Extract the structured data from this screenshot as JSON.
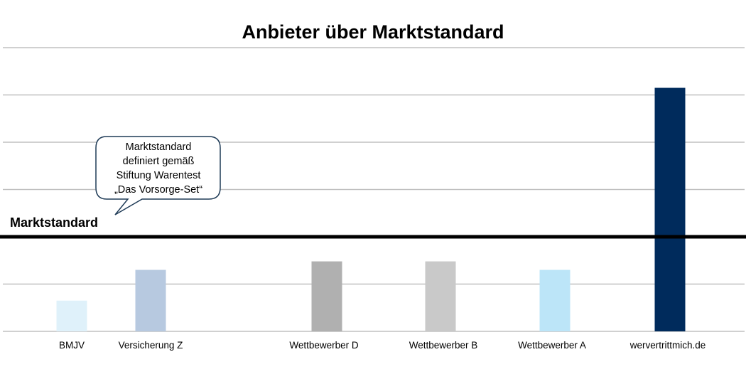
{
  "chart_data": {
    "type": "bar",
    "title": "Anbieter über Marktstandard",
    "categories": [
      "BMJV",
      "Versicherung  Z",
      "Wettbewerber D",
      "Wettbewerber B",
      "Wettbewerber A",
      "wervertrittmich.de"
    ],
    "values": [
      0.65,
      1.3,
      1.48,
      1.48,
      1.3,
      5.15
    ],
    "colors": [
      "#dff1fa",
      "#b7c9e0",
      "#b0b0b0",
      "#c9c9c9",
      "#bce5f8",
      "#002b5c"
    ],
    "ylim": [
      0,
      6
    ],
    "grid": true,
    "reference_line": {
      "label": "Marktstandard",
      "value": 2.0,
      "color": "#000000"
    },
    "annotation": {
      "lines": [
        "Marktstandard",
        "definiert gemäß",
        "Stiftung Warentest",
        "„Das Vorsorge-Set“"
      ],
      "border_color": "#1f3b57"
    }
  }
}
